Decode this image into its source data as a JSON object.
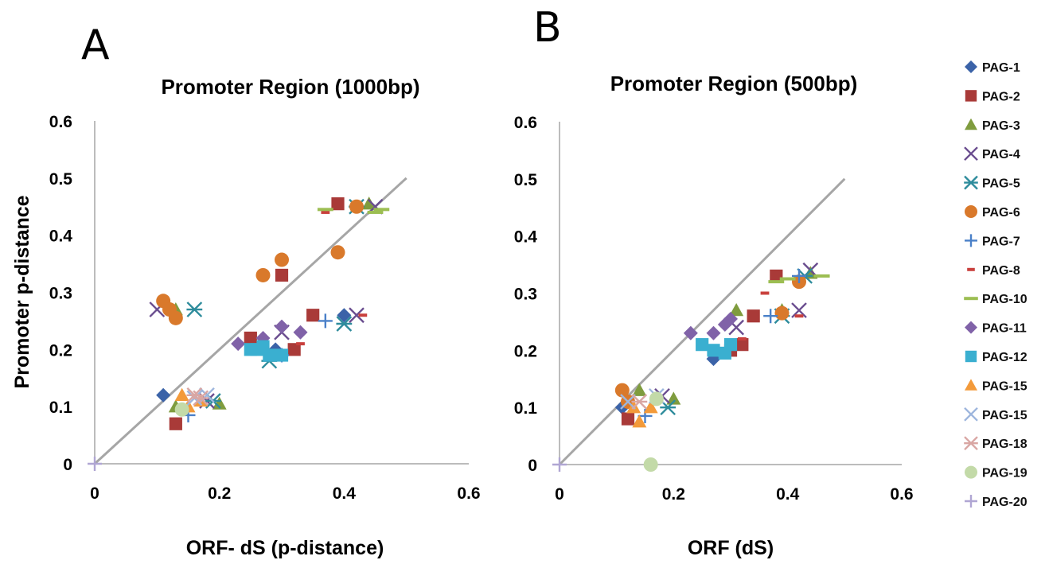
{
  "panel_letters": [
    "A",
    "B"
  ],
  "legend": {
    "placement": "right",
    "entries": [
      {
        "name": "PAG-1",
        "color": "#3B63A8",
        "marker": "diamond"
      },
      {
        "name": "PAG-2",
        "color": "#A93A38",
        "marker": "square"
      },
      {
        "name": "PAG-3",
        "color": "#7F9C3E",
        "marker": "triangle"
      },
      {
        "name": "PAG-4",
        "color": "#6A4D8F",
        "marker": "x"
      },
      {
        "name": "PAG-5",
        "color": "#2E8C9C",
        "marker": "asterisk"
      },
      {
        "name": "PAG-6",
        "color": "#D9792B",
        "marker": "circle"
      },
      {
        "name": "PAG-7",
        "color": "#4A80C8",
        "marker": "plus"
      },
      {
        "name": "PAG-8",
        "color": "#C9403D",
        "marker": "dash"
      },
      {
        "name": "PAG-10",
        "color": "#9CBE52",
        "marker": "longdash"
      },
      {
        "name": "PAG-11",
        "color": "#8062A8",
        "marker": "diamond"
      },
      {
        "name": "PAG-12",
        "color": "#3AAFD0",
        "marker": "square"
      },
      {
        "name": "PAG-15",
        "color": "#F39A3A",
        "marker": "triangle"
      },
      {
        "name": "PAG-15",
        "color": "#9DB6DD",
        "marker": "x"
      },
      {
        "name": "PAG-18",
        "color": "#D9A6A3",
        "marker": "asterisk"
      },
      {
        "name": "PAG-19",
        "color": "#C3DAA8",
        "marker": "circle"
      },
      {
        "name": "PAG-20",
        "color": "#B0A6D3",
        "marker": "plus"
      }
    ]
  },
  "chart_data": [
    {
      "type": "scatter",
      "panel": "A",
      "title": "Promoter Region (1000bp)",
      "xlabel": "ORF- dS (p-distance)",
      "ylabel": "Promoter p-distance",
      "xlim": [
        0,
        0.6
      ],
      "ylim": [
        0,
        0.6
      ],
      "xticks": [
        "0",
        "0.2",
        "0.4",
        "0.6"
      ],
      "yticks": [
        "0",
        "0.1",
        "0.2",
        "0.3",
        "0.4",
        "0.5",
        "0.6"
      ],
      "grid": false,
      "reference_line": {
        "x": [
          0,
          0.5
        ],
        "y": [
          0,
          0.5
        ],
        "color": "#A6A6A6"
      },
      "series": [
        {
          "name": "PAG-1",
          "points": [
            [
              0.11,
              0.12
            ],
            [
              0.4,
              0.26
            ],
            [
              0.29,
              0.2
            ]
          ]
        },
        {
          "name": "PAG-2",
          "points": [
            [
              0.13,
              0.07
            ],
            [
              0.35,
              0.26
            ],
            [
              0.39,
              0.455
            ],
            [
              0.3,
              0.33
            ],
            [
              0.32,
              0.2
            ],
            [
              0.25,
              0.22
            ]
          ]
        },
        {
          "name": "PAG-3",
          "points": [
            [
              0.13,
              0.27
            ],
            [
              0.2,
              0.105
            ],
            [
              0.44,
              0.455
            ],
            [
              0.13,
              0.1
            ]
          ]
        },
        {
          "name": "PAG-4",
          "points": [
            [
              0.1,
              0.27
            ],
            [
              0.42,
              0.26
            ],
            [
              0.3,
              0.23
            ],
            [
              0.45,
              0.45
            ],
            [
              0.18,
              0.11
            ]
          ]
        },
        {
          "name": "PAG-5",
          "points": [
            [
              0.16,
              0.27
            ],
            [
              0.4,
              0.245
            ],
            [
              0.28,
              0.18
            ],
            [
              0.19,
              0.11
            ],
            [
              0.42,
              0.45
            ]
          ]
        },
        {
          "name": "PAG-6",
          "points": [
            [
              0.11,
              0.285
            ],
            [
              0.12,
              0.27
            ],
            [
              0.13,
              0.255
            ],
            [
              0.27,
              0.33
            ],
            [
              0.3,
              0.357
            ],
            [
              0.39,
              0.37
            ],
            [
              0.42,
              0.45
            ]
          ]
        },
        {
          "name": "PAG-7",
          "points": [
            [
              0.15,
              0.085
            ],
            [
              0.37,
              0.25
            ],
            [
              0.3,
              0.19
            ]
          ]
        },
        {
          "name": "PAG-8",
          "points": [
            [
              0.37,
              0.44
            ],
            [
              0.43,
              0.26
            ],
            [
              0.33,
              0.21
            ]
          ]
        },
        {
          "name": "PAG-10",
          "points": [
            [
              0.37,
              0.445
            ],
            [
              0.46,
              0.445
            ],
            [
              0.45,
              0.44
            ]
          ]
        },
        {
          "name": "PAG-11",
          "points": [
            [
              0.23,
              0.21
            ],
            [
              0.27,
              0.22
            ],
            [
              0.3,
              0.24
            ],
            [
              0.33,
              0.23
            ]
          ]
        },
        {
          "name": "PAG-12",
          "points": [
            [
              0.25,
              0.2
            ],
            [
              0.26,
              0.2
            ],
            [
              0.28,
              0.19
            ],
            [
              0.3,
              0.19
            ],
            [
              0.27,
              0.205
            ]
          ]
        },
        {
          "name": "PAG-15",
          "points": [
            [
              0.14,
              0.12
            ],
            [
              0.17,
              0.11
            ],
            [
              0.15,
              0.1
            ]
          ]
        },
        {
          "name": "PAG-15 (x)",
          "points": [
            [
              0.16,
              0.115
            ],
            [
              0.18,
              0.12
            ]
          ]
        },
        {
          "name": "PAG-18",
          "points": [
            [
              0.16,
              0.12
            ],
            [
              0.17,
              0.115
            ]
          ]
        },
        {
          "name": "PAG-19",
          "points": [
            [
              0.14,
              0.095
            ]
          ]
        },
        {
          "name": "PAG-20",
          "points": [
            [
              0.0,
              0.0
            ]
          ]
        }
      ]
    },
    {
      "type": "scatter",
      "panel": "B",
      "title": "Promoter Region (500bp)",
      "xlabel": "ORF (dS)",
      "ylabel": "",
      "xlim": [
        0,
        0.6
      ],
      "ylim": [
        0,
        0.6
      ],
      "xticks": [
        "0",
        "0.2",
        "0.4",
        "0.6"
      ],
      "yticks": [
        "0",
        "0.1",
        "0.2",
        "0.3",
        "0.4",
        "0.5",
        "0.6"
      ],
      "grid": false,
      "reference_line": {
        "x": [
          0,
          0.5
        ],
        "y": [
          0,
          0.5
        ],
        "color": "#A6A6A6"
      },
      "series": [
        {
          "name": "PAG-1",
          "points": [
            [
              0.11,
              0.1
            ],
            [
              0.27,
              0.185
            ]
          ]
        },
        {
          "name": "PAG-2",
          "points": [
            [
              0.12,
              0.08
            ],
            [
              0.38,
              0.33
            ],
            [
              0.32,
              0.21
            ],
            [
              0.34,
              0.26
            ],
            [
              0.3,
              0.2
            ]
          ]
        },
        {
          "name": "PAG-3",
          "points": [
            [
              0.14,
              0.13
            ],
            [
              0.31,
              0.27
            ],
            [
              0.39,
              0.27
            ],
            [
              0.2,
              0.115
            ],
            [
              0.44,
              0.335
            ]
          ]
        },
        {
          "name": "PAG-4",
          "points": [
            [
              0.42,
              0.27
            ],
            [
              0.44,
              0.34
            ],
            [
              0.18,
              0.12
            ],
            [
              0.31,
              0.24
            ]
          ]
        },
        {
          "name": "PAG-5",
          "points": [
            [
              0.19,
              0.1
            ],
            [
              0.39,
              0.26
            ],
            [
              0.43,
              0.33
            ]
          ]
        },
        {
          "name": "PAG-6",
          "points": [
            [
              0.11,
              0.13
            ],
            [
              0.12,
              0.11
            ],
            [
              0.42,
              0.32
            ],
            [
              0.39,
              0.265
            ]
          ]
        },
        {
          "name": "PAG-7",
          "points": [
            [
              0.15,
              0.085
            ],
            [
              0.37,
              0.26
            ],
            [
              0.42,
              0.33
            ]
          ]
        },
        {
          "name": "PAG-8",
          "points": [
            [
              0.36,
              0.3
            ],
            [
              0.42,
              0.26
            ],
            [
              0.32,
              0.22
            ]
          ]
        },
        {
          "name": "PAG-10",
          "points": [
            [
              0.38,
              0.32
            ],
            [
              0.46,
              0.33
            ],
            [
              0.4,
              0.325
            ]
          ]
        },
        {
          "name": "PAG-11",
          "points": [
            [
              0.23,
              0.23
            ],
            [
              0.27,
              0.23
            ],
            [
              0.3,
              0.255
            ],
            [
              0.29,
              0.245
            ]
          ]
        },
        {
          "name": "PAG-12",
          "points": [
            [
              0.25,
              0.21
            ],
            [
              0.27,
              0.2
            ],
            [
              0.29,
              0.195
            ],
            [
              0.3,
              0.21
            ]
          ]
        },
        {
          "name": "PAG-15",
          "points": [
            [
              0.14,
              0.075
            ],
            [
              0.16,
              0.1
            ],
            [
              0.13,
              0.1
            ]
          ]
        },
        {
          "name": "PAG-15 (x)",
          "points": [
            [
              0.12,
              0.11
            ],
            [
              0.17,
              0.12
            ]
          ]
        },
        {
          "name": "PAG-18",
          "points": [
            [
              0.14,
              0.11
            ]
          ]
        },
        {
          "name": "PAG-19",
          "points": [
            [
              0.16,
              0.0
            ],
            [
              0.17,
              0.115
            ]
          ]
        },
        {
          "name": "PAG-20",
          "points": [
            [
              0.0,
              0.0
            ]
          ]
        }
      ]
    }
  ]
}
